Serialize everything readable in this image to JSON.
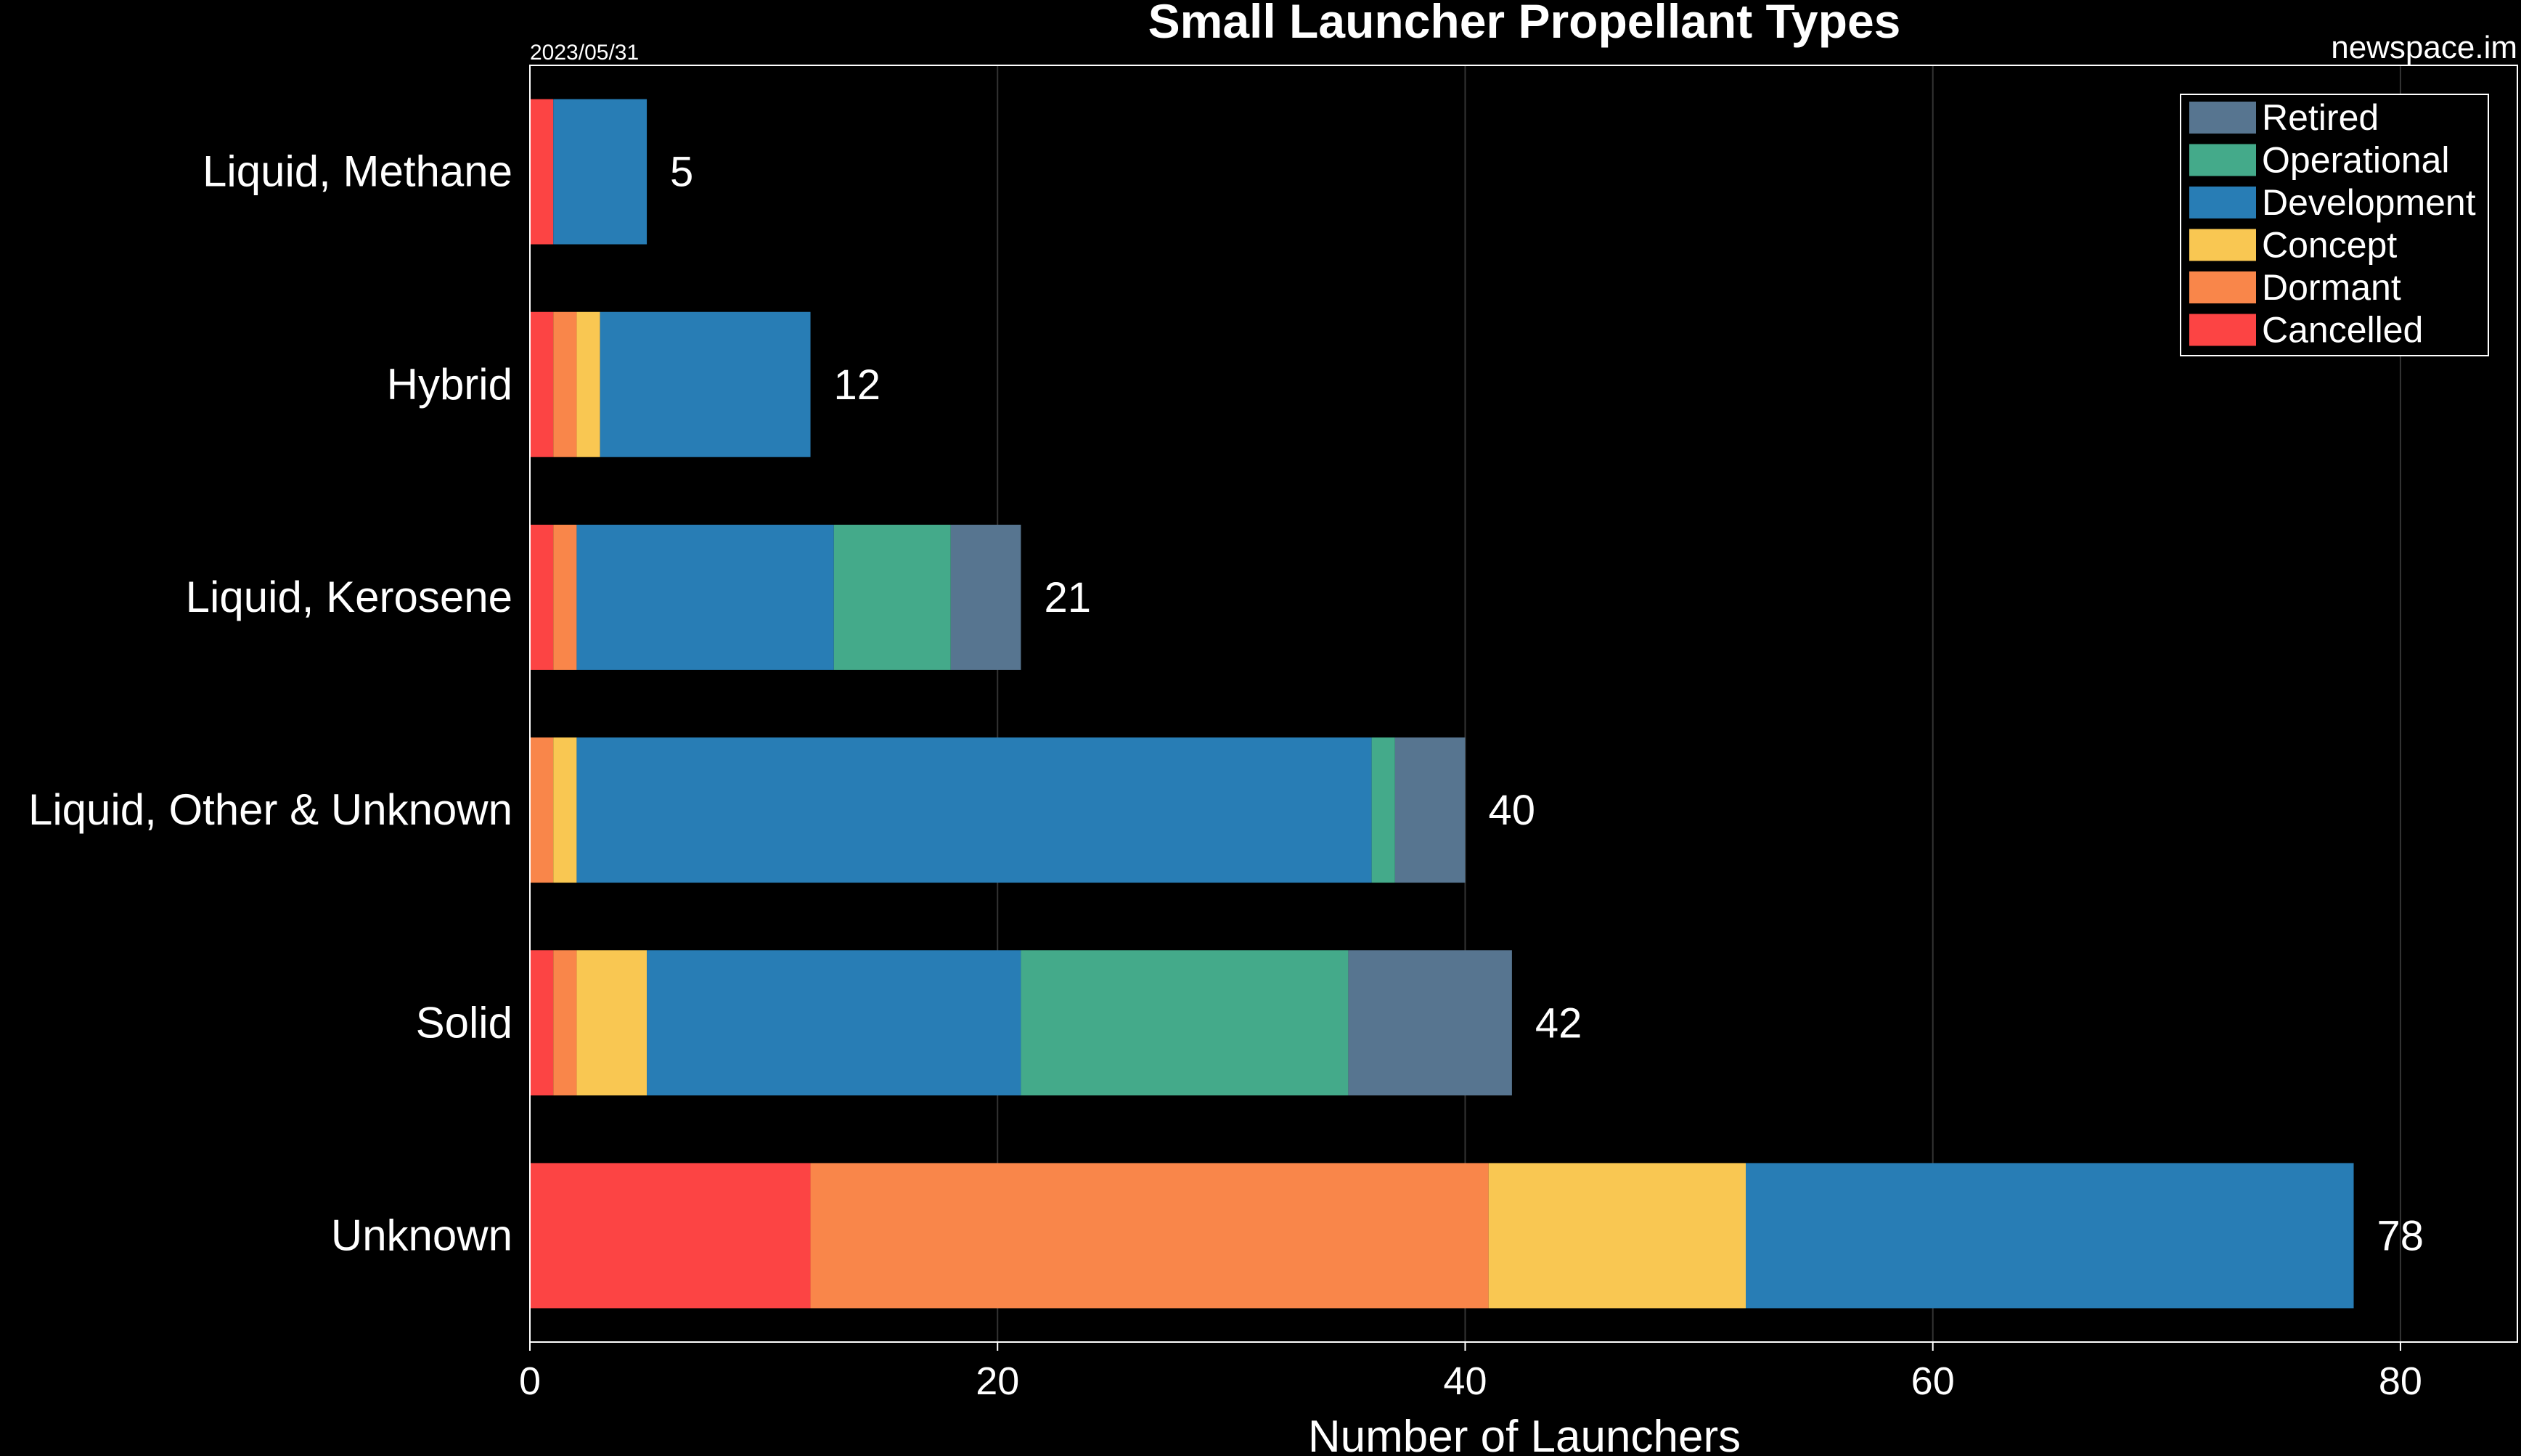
{
  "header": {
    "title": "Small Launcher Propellant Types",
    "date": "2023/05/31",
    "source": "newspace.im"
  },
  "chart_data": {
    "type": "bar",
    "orientation": "horizontal",
    "stacked": true,
    "title": "Small Launcher Propellant Types",
    "xlabel": "Number of Launchers",
    "ylabel": "",
    "xlim": [
      0,
      85
    ],
    "xticks": [
      "0",
      "20",
      "40",
      "60",
      "80"
    ],
    "grid": true,
    "legend_position": "top-right",
    "categories": [
      "Liquid, Methane",
      "Hybrid",
      "Liquid, Kerosene",
      "Liquid, Other & Unknown",
      "Solid",
      "Unknown"
    ],
    "totals": [
      "5",
      "12",
      "21",
      "40",
      "42",
      "78"
    ],
    "series": [
      {
        "name": "Cancelled",
        "color": "#fc4444",
        "values": [
          1,
          1,
          1,
          0,
          1,
          12
        ]
      },
      {
        "name": "Dormant",
        "color": "#f9864a",
        "values": [
          0,
          1,
          1,
          1,
          1,
          29
        ]
      },
      {
        "name": "Concept",
        "color": "#f9c752",
        "values": [
          0,
          1,
          0,
          1,
          3,
          11
        ]
      },
      {
        "name": "Development",
        "color": "#287db5",
        "values": [
          4,
          9,
          11,
          34,
          16,
          26
        ]
      },
      {
        "name": "Operational",
        "color": "#44aa8a",
        "values": [
          0,
          0,
          5,
          1,
          14,
          0
        ]
      },
      {
        "name": "Retired",
        "color": "#577590",
        "values": [
          0,
          0,
          3,
          3,
          7,
          0
        ]
      }
    ],
    "legend_order": [
      "Retired",
      "Operational",
      "Development",
      "Concept",
      "Dormant",
      "Cancelled"
    ]
  }
}
